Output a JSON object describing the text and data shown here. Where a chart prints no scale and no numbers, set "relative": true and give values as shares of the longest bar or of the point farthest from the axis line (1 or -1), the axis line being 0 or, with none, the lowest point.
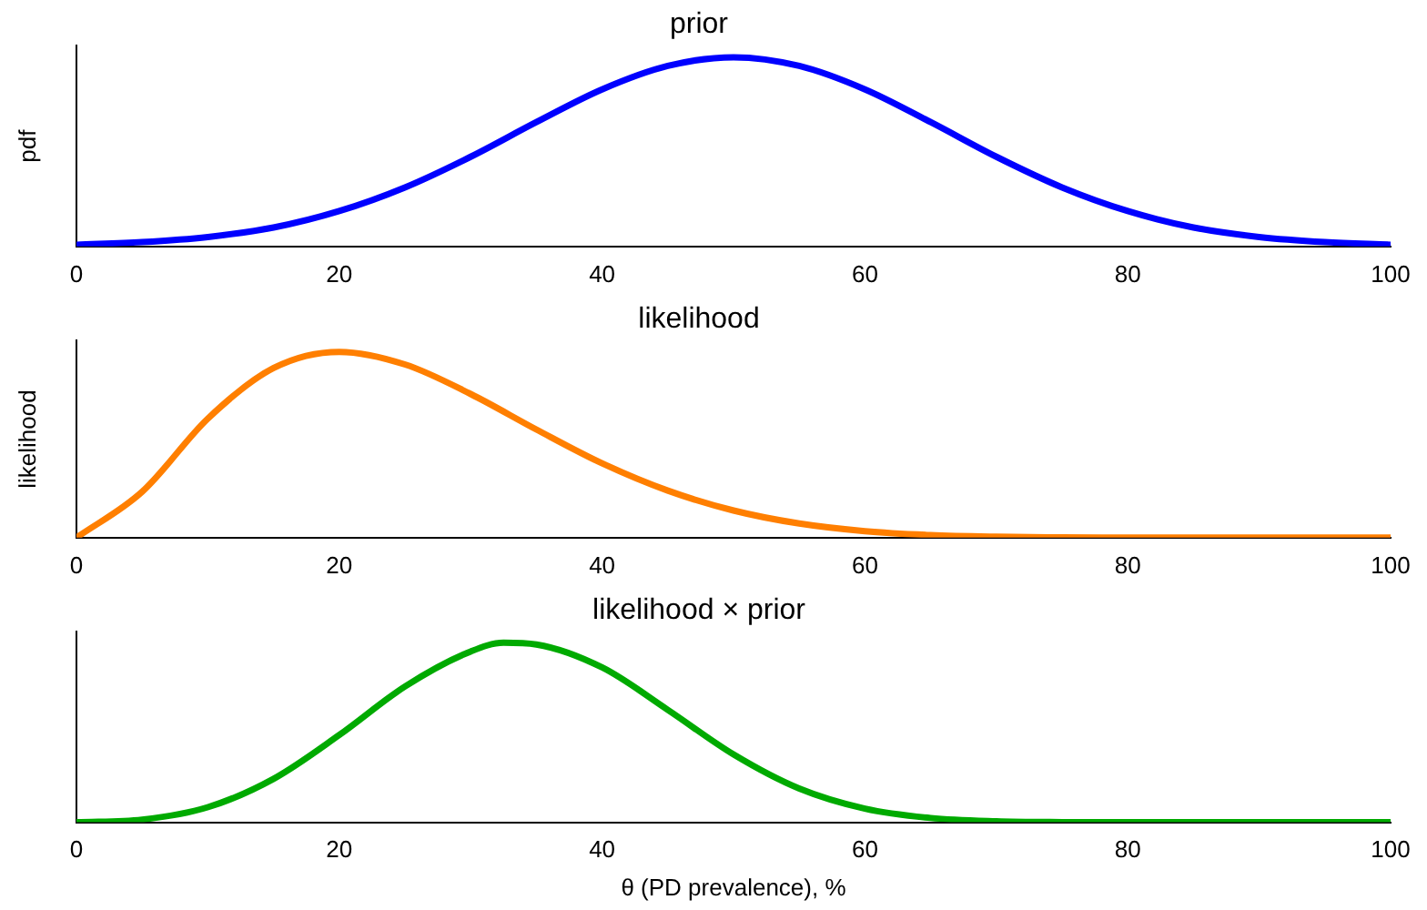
{
  "chart_data": [
    {
      "type": "line",
      "title": "prior",
      "ylabel": "pdf",
      "relative": true,
      "legend": false,
      "grid": false,
      "marker": "none",
      "xlim": [
        0,
        100
      ],
      "xticks": [
        0,
        20,
        40,
        60,
        80,
        100
      ],
      "series": [
        {
          "color": "#0000ff",
          "x": [
            0,
            5,
            10,
            15,
            20,
            25,
            30,
            35,
            40,
            45,
            50,
            55,
            60,
            65,
            70,
            75,
            80,
            85,
            90,
            95,
            100
          ],
          "values": [
            0.009,
            0.023,
            0.05,
            0.1,
            0.187,
            0.312,
            0.474,
            0.657,
            0.83,
            0.954,
            1,
            0.954,
            0.83,
            0.657,
            0.474,
            0.312,
            0.187,
            0.1,
            0.05,
            0.023,
            0.009
          ]
        }
      ]
    },
    {
      "type": "line",
      "title": "likelihood",
      "ylabel": "likelihood",
      "relative": true,
      "legend": false,
      "grid": false,
      "marker": "none",
      "xlim": [
        0,
        100
      ],
      "xticks": [
        0,
        20,
        40,
        60,
        80,
        100
      ],
      "series": [
        {
          "color": "#ff7f00",
          "x": [
            0,
            5,
            10,
            15,
            20,
            25,
            30,
            35,
            40,
            45,
            50,
            55,
            60,
            65,
            70,
            75,
            80,
            90,
            100
          ],
          "values": [
            0,
            0.247,
            0.641,
            0.913,
            1,
            0.932,
            0.773,
            0.582,
            0.4,
            0.253,
            0.146,
            0.076,
            0.035,
            0.014,
            0.005,
            0.001,
            0,
            0,
            0
          ]
        }
      ]
    },
    {
      "type": "line",
      "title": "likelihood × prior",
      "xlabel": "θ (PD prevalence), %",
      "relative": true,
      "legend": false,
      "grid": false,
      "marker": "none",
      "xlim": [
        0,
        100
      ],
      "xticks": [
        0,
        20,
        40,
        60,
        80,
        100
      ],
      "series": [
        {
          "color": "#00aa00",
          "x": [
            0,
            5,
            10,
            15,
            20,
            25,
            30,
            32.5,
            35,
            40,
            45,
            50,
            55,
            60,
            65,
            70,
            75,
            80,
            90,
            100
          ],
          "values": [
            0,
            0.015,
            0.084,
            0.242,
            0.486,
            0.756,
            0.951,
            1,
            0.99,
            0.862,
            0.626,
            0.378,
            0.188,
            0.076,
            0.024,
            0.006,
            0.001,
            0,
            0,
            0
          ]
        }
      ]
    }
  ]
}
